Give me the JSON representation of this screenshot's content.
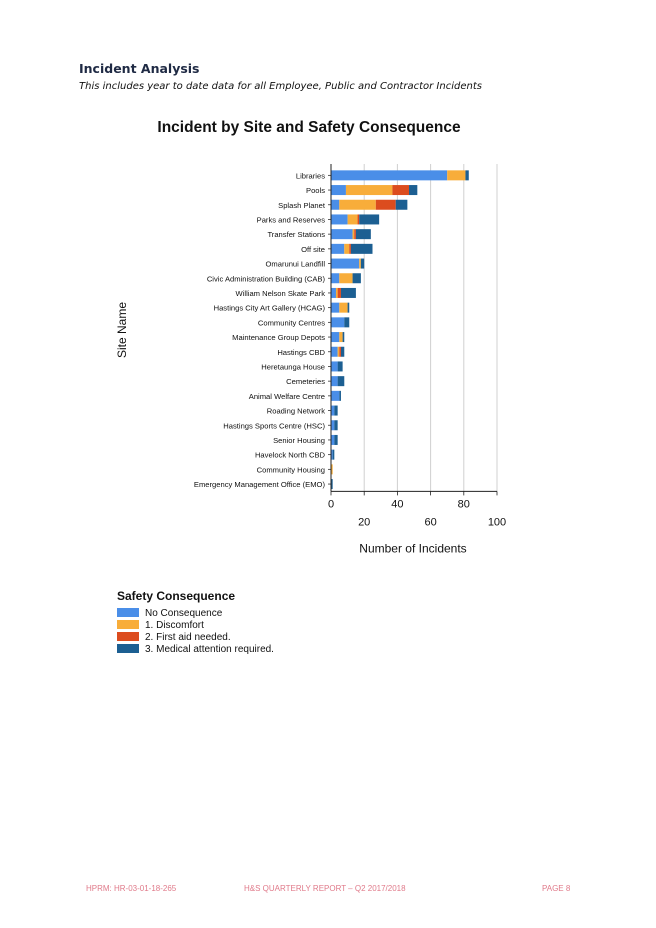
{
  "page": {
    "title": "Incident Analysis",
    "subtitle": "This includes year to date data for all Employee, Public and Contractor Incidents"
  },
  "chart_data": {
    "type": "bar",
    "orientation": "horizontal",
    "stacked": true,
    "title": "Incident by Site and Safety Consequence",
    "xlabel": "Number of Incidents",
    "ylabel": "Site Name",
    "xlim": [
      0,
      100
    ],
    "xticks": [
      0,
      20,
      40,
      60,
      80,
      100
    ],
    "grid": "vertical",
    "legend_title": "Safety Consequence",
    "legend_position": "bottom-left",
    "categories": [
      "Libraries",
      "Pools",
      "Splash Planet",
      "Parks and Reserves",
      "Transfer Stations",
      "Off site",
      "Omarunui Landfill",
      "Civic Administration Building (CAB)",
      "William Nelson Skate Park",
      "Hastings City Art Gallery (HCAG)",
      "Community Centres",
      "Maintenance Group Depots",
      "Hastings CBD",
      "Heretaunga House",
      "Cemeteries",
      "Animal Welfare Centre",
      "Roading Network",
      "Hastings Sports Centre (HSC)",
      "Senior Housing",
      "Havelock North CBD",
      "Community Housing",
      "Emergency Management Office (EMO)"
    ],
    "series": [
      {
        "name": "No Consequence",
        "color": "#4a8ee8",
        "values": [
          70,
          9,
          5,
          10,
          13,
          8,
          17,
          5,
          3,
          5,
          8,
          5,
          4,
          4,
          4,
          5,
          2,
          2,
          2,
          1,
          0,
          0
        ]
      },
      {
        "name": "1. Discomfort",
        "color": "#f8ad3a",
        "values": [
          11,
          28,
          22,
          6,
          1,
          3,
          1,
          8,
          1,
          5,
          0,
          2,
          1,
          0,
          0,
          0,
          0,
          0,
          0,
          0,
          1,
          0
        ]
      },
      {
        "name": "2. First aid needed.",
        "color": "#dc4c1e",
        "values": [
          0,
          10,
          12,
          1,
          1,
          1,
          0,
          0,
          2,
          0,
          0,
          0,
          1,
          0,
          0,
          0,
          0,
          0,
          0,
          0,
          0,
          0
        ]
      },
      {
        "name": "3. Medical attention required.",
        "color": "#1c5f92",
        "values": [
          2,
          5,
          7,
          12,
          9,
          13,
          2,
          5,
          9,
          1,
          3,
          1,
          2,
          3,
          4,
          1,
          2,
          2,
          2,
          1,
          0,
          1
        ]
      }
    ]
  },
  "footer": {
    "reference": "HPRM: HR-03-01-18-265",
    "report": "H&S QUARTERLY REPORT – Q2 2017/2018",
    "page": "PAGE 8"
  }
}
